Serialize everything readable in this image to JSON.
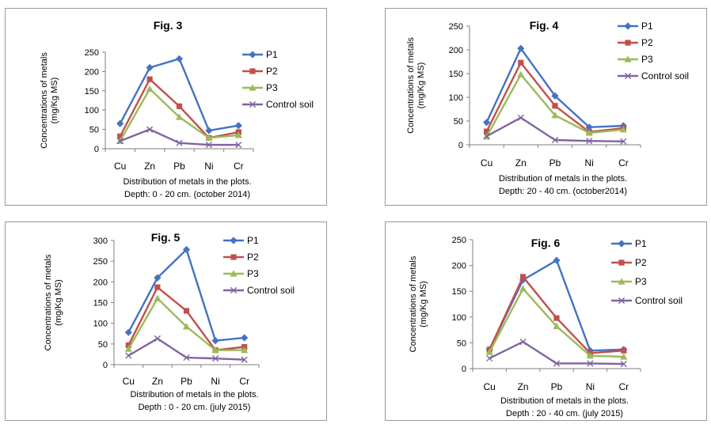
{
  "colors": {
    "P1": "#4472c4",
    "P2": "#c0504d",
    "P3": "#9bbb59",
    "Control soil": "#8064a2"
  },
  "chart_data": [
    {
      "type": "line",
      "title": "Fig. 3",
      "categories": [
        "Cu",
        "Zn",
        "Pb",
        "Ni",
        "Cr"
      ],
      "ylabel": "Concentrations of metals (mg/Kg MS)",
      "xlabel_lines": [
        "Distribution  of metals in the plots.",
        "Depth: 0 - 20 cm. (october 2014)"
      ],
      "ylim": [
        0,
        250
      ],
      "yticks": [
        0,
        50,
        100,
        150,
        200,
        250
      ],
      "legend_position": "top-right",
      "series": [
        {
          "name": "P1",
          "values": [
            65,
            210,
            233,
            47,
            60
          ]
        },
        {
          "name": "P2",
          "values": [
            32,
            180,
            110,
            28,
            43
          ]
        },
        {
          "name": "P3",
          "values": [
            20,
            155,
            82,
            28,
            35
          ]
        },
        {
          "name": "Control soil",
          "values": [
            20,
            50,
            15,
            10,
            10
          ]
        }
      ]
    },
    {
      "type": "line",
      "title": "Fig. 4",
      "categories": [
        "Cu",
        "Zn",
        "Pb",
        "Ni",
        "Cr"
      ],
      "ylabel": "Concentrations of metals (mg/Kg MS)",
      "xlabel_lines": [
        "Distribution  of metals in the plots.",
        "Depth: 20 - 40 cm. (october2014)"
      ],
      "ylim": [
        0,
        250
      ],
      "yticks": [
        0,
        50,
        100,
        150,
        200,
        250
      ],
      "legend_position": "top-right",
      "series": [
        {
          "name": "P1",
          "values": [
            47,
            203,
            103,
            37,
            40
          ]
        },
        {
          "name": "P2",
          "values": [
            28,
            173,
            82,
            27,
            35
          ]
        },
        {
          "name": "P3",
          "values": [
            17,
            148,
            62,
            25,
            32
          ]
        },
        {
          "name": "Control soil",
          "values": [
            18,
            57,
            10,
            8,
            7
          ]
        }
      ]
    },
    {
      "type": "line",
      "title": "Fig. 5",
      "categories": [
        "Cu",
        "Zn",
        "Pb",
        "Ni",
        "Cr"
      ],
      "ylabel": "Concentrations of metals (mg/Kg MS)",
      "xlabel_lines": [
        "Distribution  of metals in the plots.",
        "Depth : 0 - 20 cm. (july 2015)"
      ],
      "ylim": [
        0,
        300
      ],
      "yticks": [
        0,
        50,
        100,
        150,
        200,
        250,
        300
      ],
      "legend_position": "top-right",
      "series": [
        {
          "name": "P1",
          "values": [
            78,
            210,
            278,
            58,
            65
          ]
        },
        {
          "name": "P2",
          "values": [
            47,
            187,
            130,
            35,
            43
          ]
        },
        {
          "name": "P3",
          "values": [
            38,
            160,
            92,
            35,
            35
          ]
        },
        {
          "name": "Control soil",
          "values": [
            22,
            63,
            17,
            15,
            12
          ]
        }
      ]
    },
    {
      "type": "line",
      "title": "Fig. 6",
      "categories": [
        "Cu",
        "Zn",
        "Pb",
        "Ni",
        "Cr"
      ],
      "ylabel": "Concentrations of metals (mg/Kg MS)",
      "xlabel_lines": [
        "Distribution  of metals in the plots.",
        "Depth : 20 - 40 cm. (july 2015)"
      ],
      "ylim": [
        0,
        250
      ],
      "yticks": [
        0,
        50,
        100,
        150,
        200,
        250
      ],
      "legend_position": "top-right",
      "series": [
        {
          "name": "P1",
          "values": [
            37,
            172,
            210,
            35,
            37
          ]
        },
        {
          "name": "P2",
          "values": [
            37,
            178,
            98,
            30,
            35
          ]
        },
        {
          "name": "P3",
          "values": [
            32,
            155,
            82,
            25,
            23
          ]
        },
        {
          "name": "Control soil",
          "values": [
            20,
            52,
            10,
            10,
            9
          ]
        }
      ]
    }
  ]
}
